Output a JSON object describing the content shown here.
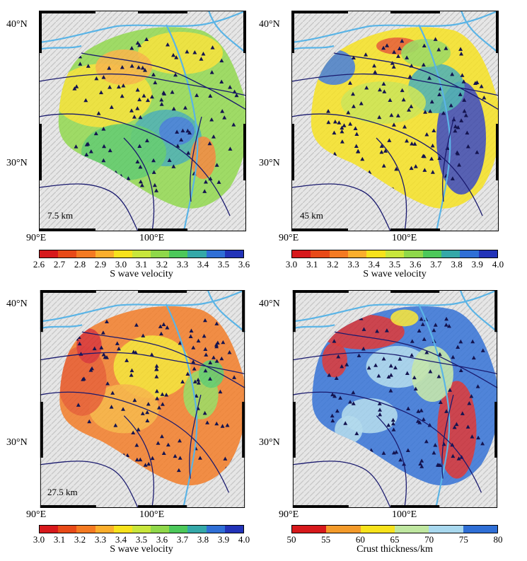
{
  "panels": [
    {
      "id": "tl",
      "depth_label": "7.5 km",
      "lat_labels": [
        "40°N",
        "30°N"
      ],
      "lon_labels": [
        "90°E",
        "100°E"
      ],
      "colorbar": {
        "ticks": [
          "2.6",
          "2.7",
          "2.8",
          "2.9",
          "3.0",
          "3.1",
          "3.2",
          "3.3",
          "3.4",
          "3.5",
          "3.6"
        ],
        "title": "S wave velocity",
        "colors": [
          "#d7191c",
          "#e84a18",
          "#f47a22",
          "#fbae2c",
          "#f7e21c",
          "#c8e63c",
          "#8fd84a",
          "#4cc85a",
          "#34a8a8",
          "#2f6fd6",
          "#2233b8"
        ]
      }
    },
    {
      "id": "tr",
      "depth_label": "45 km",
      "lat_labels": [
        "40°N",
        "30°N"
      ],
      "lon_labels": [
        "90°E",
        "100°E"
      ],
      "colorbar": {
        "ticks": [
          "3.0",
          "3.1",
          "3.2",
          "3.3",
          "3.4",
          "3.5",
          "3.6",
          "3.7",
          "3.8",
          "3.9",
          "4.0"
        ],
        "title": "S wave velocity",
        "colors": [
          "#d7191c",
          "#e84a18",
          "#f47a22",
          "#fbae2c",
          "#f7e21c",
          "#c8e63c",
          "#8fd84a",
          "#4cc85a",
          "#34a8a8",
          "#2f6fd6",
          "#2233b8"
        ]
      }
    },
    {
      "id": "bl",
      "depth_label": "27.5 km",
      "lat_labels": [
        "40°N",
        "30°N"
      ],
      "lon_labels": [
        "90°E",
        "100°E"
      ],
      "colorbar": {
        "ticks": [
          "3.0",
          "3.1",
          "3.2",
          "3.3",
          "3.4",
          "3.5",
          "3.6",
          "3.7",
          "3.8",
          "3.9",
          "4.0"
        ],
        "title": "S wave velocity",
        "colors": [
          "#d7191c",
          "#e84a18",
          "#f47a22",
          "#fbae2c",
          "#f7e21c",
          "#c8e63c",
          "#8fd84a",
          "#4cc85a",
          "#34a8a8",
          "#2f6fd6",
          "#2233b8"
        ]
      }
    },
    {
      "id": "br",
      "depth_label": "",
      "lat_labels": [
        "40°N",
        "30°N"
      ],
      "lon_labels": [
        "90°E",
        "100°E"
      ],
      "colorbar": {
        "ticks": [
          "50",
          "55",
          "60",
          "65",
          "70",
          "75",
          "80"
        ],
        "title": "Crust thickness/km",
        "colors": [
          "#d7191c",
          "#f39a2a",
          "#f7e21c",
          "#bfe7a0",
          "#a8d8ee",
          "#2f6fd6"
        ]
      }
    }
  ]
}
